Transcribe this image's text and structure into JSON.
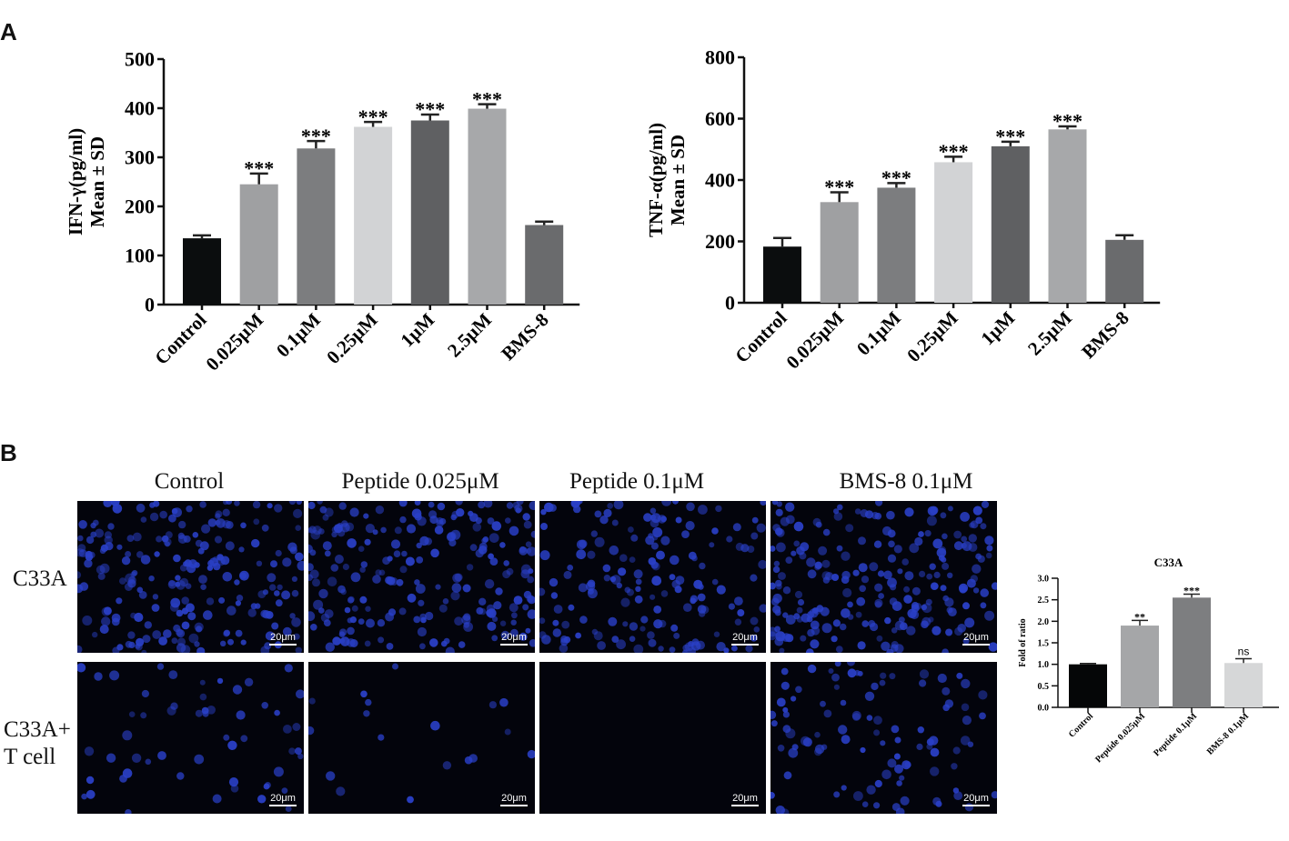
{
  "panel_labels": {
    "a": "A",
    "b": "B"
  },
  "chart_data": [
    {
      "type": "bar",
      "ylabel_line1": "IFN-γ(pg/ml)",
      "ylabel_line2": "Mean ± SD",
      "categories": [
        "Control",
        "0.025μM",
        "0.1μM",
        "0.25μM",
        "1μM",
        "2.5μM",
        "BMS-8"
      ],
      "values": [
        135,
        245,
        318,
        362,
        375,
        399,
        162
      ],
      "errors": [
        6,
        22,
        15,
        10,
        12,
        9,
        7
      ],
      "annotations": [
        "",
        "***",
        "***",
        "***",
        "***",
        "***",
        ""
      ],
      "colors": [
        "#0b0d0e",
        "#9fa0a2",
        "#7c7d7f",
        "#d2d3d5",
        "#5f6062",
        "#a7a8aa",
        "#6a6b6d"
      ],
      "ylim": [
        0,
        500
      ],
      "yticks": [
        "0",
        "100",
        "200",
        "300",
        "400",
        "500"
      ]
    },
    {
      "type": "bar",
      "ylabel_line1": "TNF-α(pg/ml)",
      "ylabel_line2": "Mean ± SD",
      "categories": [
        "Control",
        "0.025μM",
        "0.1μM",
        "0.25μM",
        "1μM",
        "2.5μM",
        "BMS-8"
      ],
      "values": [
        183,
        328,
        375,
        458,
        510,
        565,
        205
      ],
      "errors": [
        28,
        32,
        15,
        18,
        15,
        10,
        15
      ],
      "annotations": [
        "",
        "***",
        "***",
        "***",
        "***",
        "***",
        ""
      ],
      "colors": [
        "#0b0d0e",
        "#9fa0a2",
        "#7c7d7f",
        "#d2d3d5",
        "#5f6062",
        "#a7a8aa",
        "#6a6b6d"
      ],
      "ylim": [
        0,
        800
      ],
      "yticks": [
        "0",
        "200",
        "400",
        "600",
        "800"
      ]
    },
    {
      "type": "bar",
      "title": "C33A",
      "ylabel": "Fold of ratio",
      "categories": [
        "Control",
        "Peptide 0.025μM",
        "Peptide 0.1μM",
        "BMS-8 0.1μM"
      ],
      "values": [
        1.0,
        1.9,
        2.55,
        1.03
      ],
      "errors": [
        0.02,
        0.12,
        0.08,
        0.1
      ],
      "annotations": [
        "",
        "**",
        "***",
        "ns"
      ],
      "colors": [
        "#050607",
        "#a5a6a8",
        "#7d7e80",
        "#d6d7d8"
      ],
      "ylim": [
        0,
        3.0
      ],
      "yticks": [
        "0.0",
        "0.5",
        "1.0",
        "1.5",
        "2.0",
        "2.5",
        "3.0"
      ]
    }
  ],
  "micrographs": {
    "column_titles": [
      "Control",
      "Peptide 0.025μM",
      "Peptide 0.1μM",
      "BMS-8 0.1μM"
    ],
    "row_labels": [
      "C33A",
      "C33A+\nT cell"
    ],
    "scale_bar": "20μm",
    "nucleus_color": "#2a40c8",
    "cell_density": [
      [
        1.0,
        1.0,
        0.75,
        1.0
      ],
      [
        0.25,
        0.08,
        0.0,
        0.45
      ]
    ]
  }
}
